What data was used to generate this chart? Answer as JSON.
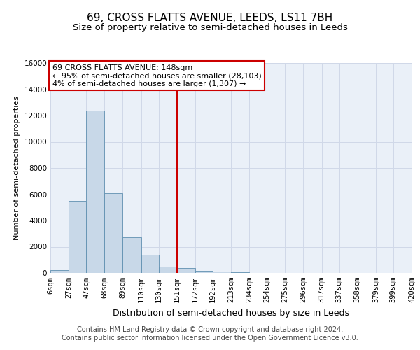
{
  "title_line1": "69, CROSS FLATTS AVENUE, LEEDS, LS11 7BH",
  "title_line2": "Size of property relative to semi-detached houses in Leeds",
  "xlabel": "Distribution of semi-detached houses by size in Leeds",
  "ylabel": "Number of semi-detached properties",
  "footer_line1": "Contains HM Land Registry data © Crown copyright and database right 2024.",
  "footer_line2": "Contains public sector information licensed under the Open Government Licence v3.0.",
  "annotation_line1": "69 CROSS FLATTS AVENUE: 148sqm",
  "annotation_line2": "← 95% of semi-detached houses are smaller (28,103)",
  "annotation_line3": "4% of semi-detached houses are larger (1,307) →",
  "bin_edges": [
    6,
    27,
    47,
    68,
    89,
    110,
    130,
    151,
    172,
    192,
    213,
    234,
    254,
    275,
    296,
    317,
    337,
    358,
    379,
    399,
    420
  ],
  "bin_labels": [
    "6sqm",
    "27sqm",
    "47sqm",
    "68sqm",
    "89sqm",
    "110sqm",
    "130sqm",
    "151sqm",
    "172sqm",
    "192sqm",
    "213sqm",
    "234sqm",
    "254sqm",
    "275sqm",
    "296sqm",
    "317sqm",
    "337sqm",
    "358sqm",
    "379sqm",
    "399sqm",
    "420sqm"
  ],
  "bar_heights": [
    200,
    5500,
    12400,
    6100,
    2700,
    1400,
    500,
    350,
    150,
    100,
    80,
    0,
    0,
    0,
    0,
    0,
    0,
    0,
    0,
    0
  ],
  "bar_color": "#c8d8e8",
  "bar_edge_color": "#6090b0",
  "grid_color": "#d0d8e8",
  "bg_color": "#eaf0f8",
  "vline_color": "#cc0000",
  "vline_x": 151,
  "ylim": [
    0,
    16000
  ],
  "yticks": [
    0,
    2000,
    4000,
    6000,
    8000,
    10000,
    12000,
    14000,
    16000
  ],
  "annotation_box_color": "#cc0000",
  "title_fontsize": 11,
  "subtitle_fontsize": 9.5,
  "xlabel_fontsize": 9,
  "ylabel_fontsize": 8,
  "tick_fontsize": 7.5,
  "annotation_fontsize": 8,
  "footer_fontsize": 7
}
